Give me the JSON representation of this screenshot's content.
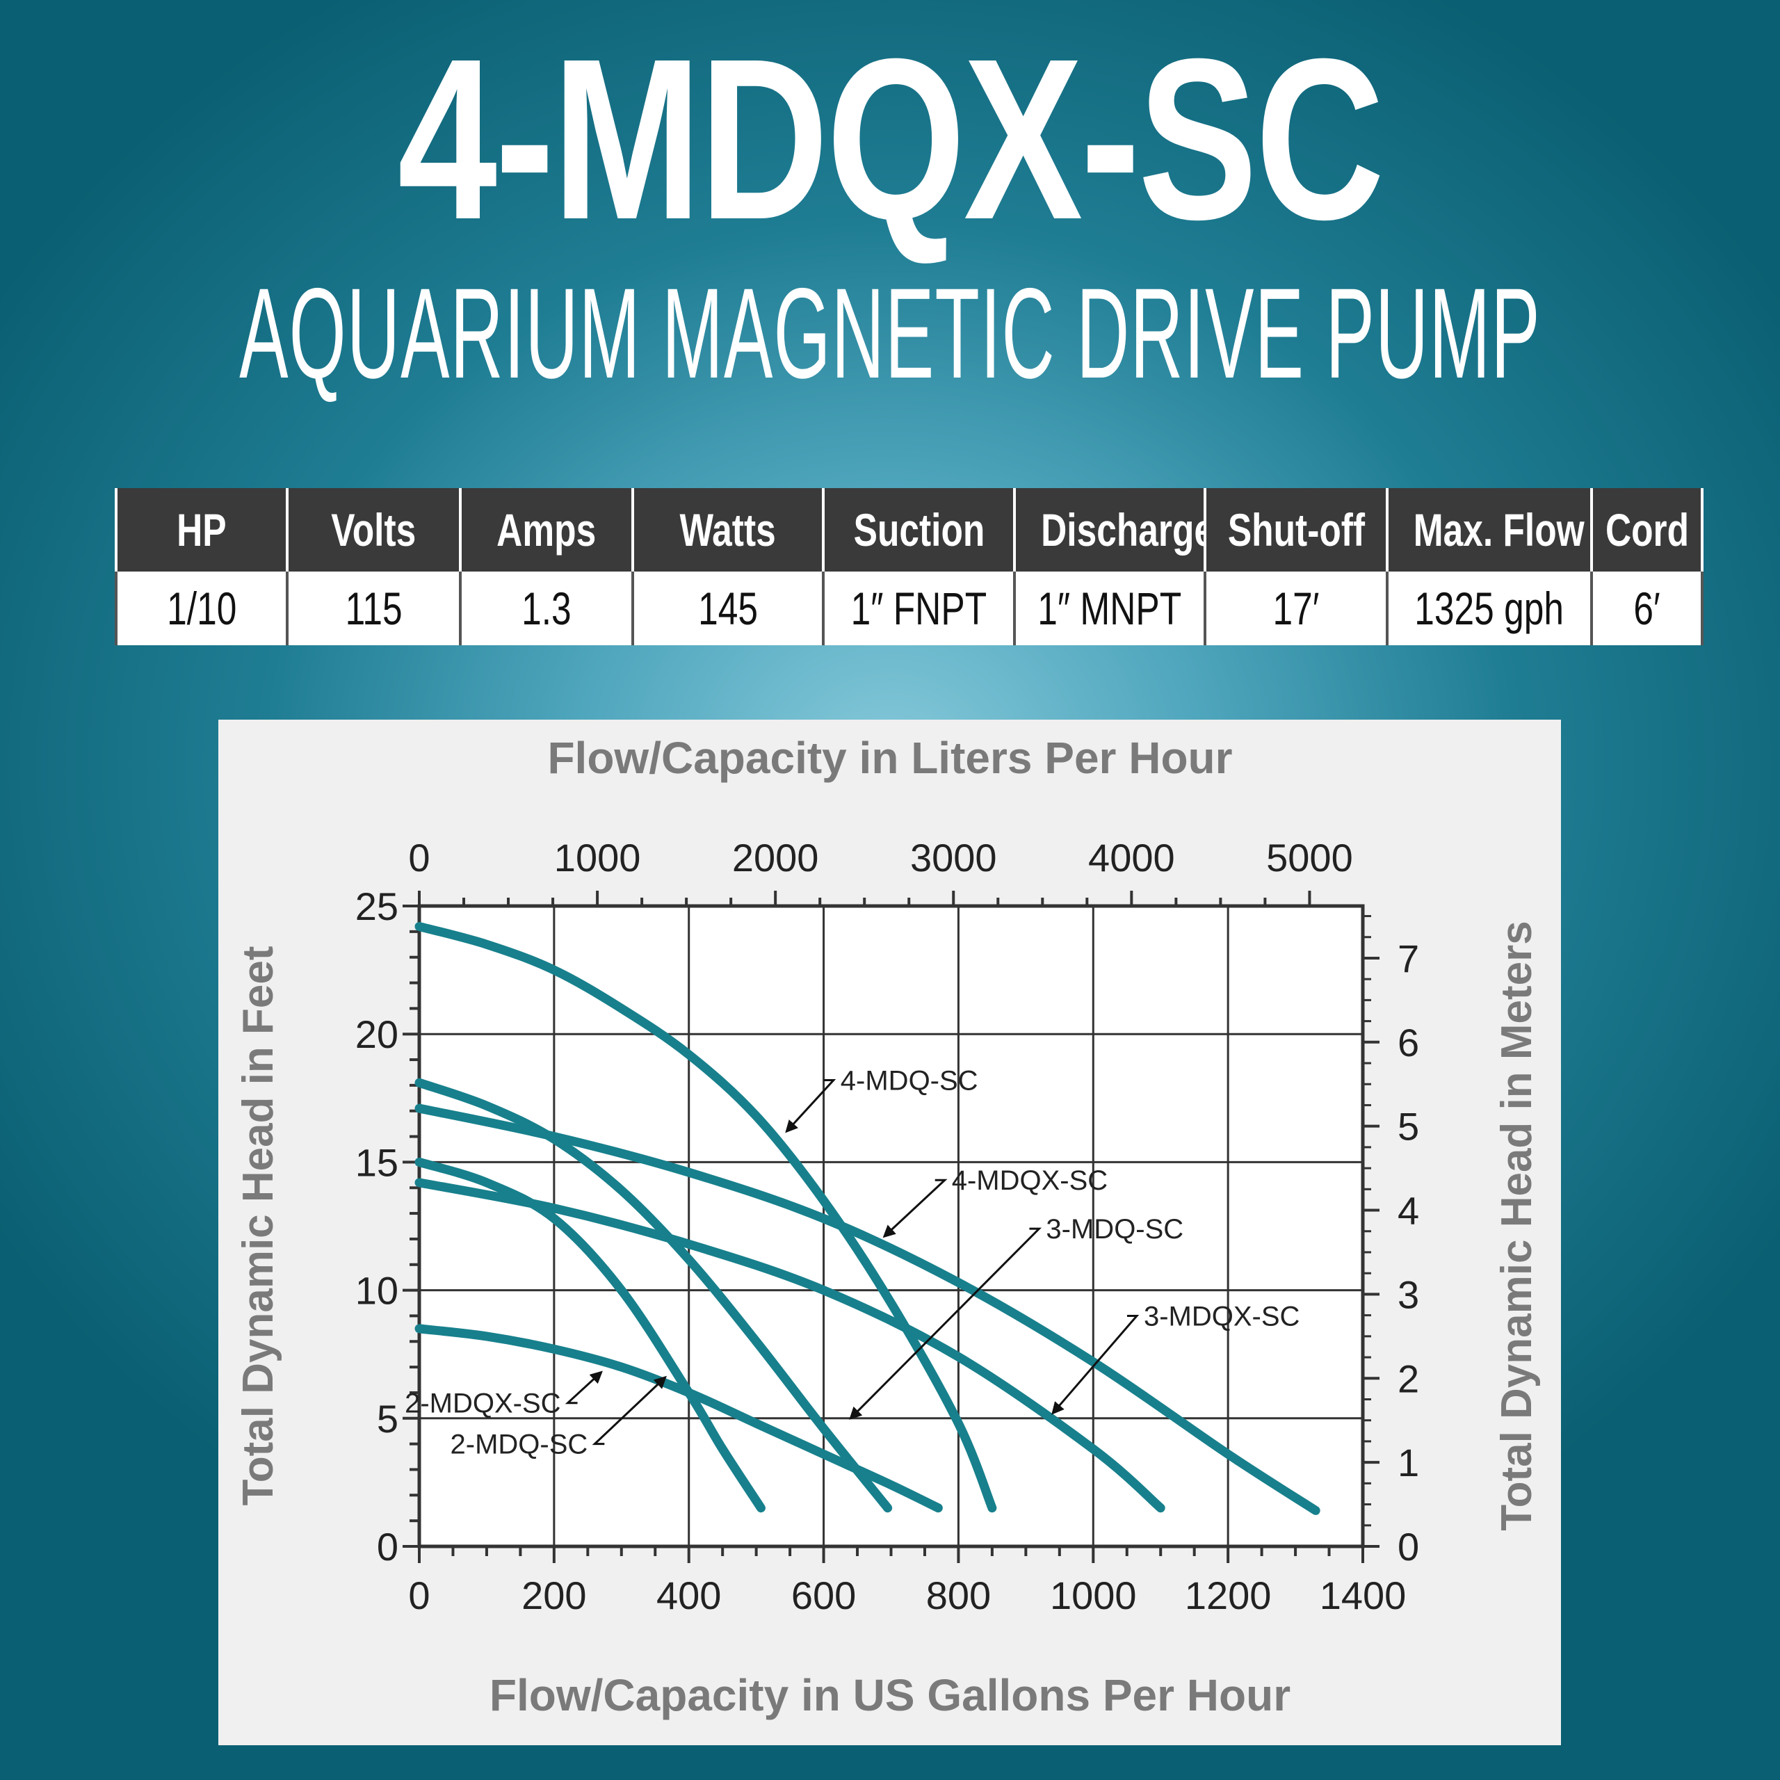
{
  "header": {
    "title": "4-MDQX-SC",
    "subtitle": "AQUARIUM MAGNETIC DRIVE PUMP"
  },
  "specs": {
    "columns": [
      "HP",
      "Volts",
      "Amps",
      "Watts",
      "Suction",
      "Discharge",
      "Shut-off",
      "Max. Flow",
      "Cord"
    ],
    "values": [
      "1/10",
      "115",
      "1.3",
      "145",
      "1″ FNPT",
      "1″ MNPT",
      "17′",
      "1325 gph",
      "6′"
    ]
  },
  "colors": {
    "curve": "#17808c",
    "grid": "#333333",
    "axis_label": "#7a7a7a"
  },
  "chart_data": {
    "type": "line",
    "xlabel": "Flow/Capacity in US Gallons Per Hour",
    "x2label": "Flow/Capacity in Liters Per Hour",
    "ylabel": "Total Dynamic Head in Feet",
    "y2label": "Total Dynamic Head in Meters",
    "xlim": [
      0,
      1400
    ],
    "ylim": [
      0,
      25
    ],
    "xticks": [
      0,
      200,
      400,
      600,
      800,
      1000,
      1200,
      1400
    ],
    "yticks": [
      0,
      5,
      10,
      15,
      20,
      25
    ],
    "x2ticks": [
      0,
      1000,
      2000,
      3000,
      4000,
      5000
    ],
    "y2ticks": [
      0,
      1,
      2,
      3,
      4,
      5,
      6,
      7
    ],
    "grid": true,
    "series": [
      {
        "name": "4-MDQ-SC",
        "points": [
          [
            0,
            24.2
          ],
          [
            100,
            23.5
          ],
          [
            200,
            22.5
          ],
          [
            300,
            21
          ],
          [
            400,
            19.2
          ],
          [
            500,
            16.8
          ],
          [
            600,
            13.5
          ],
          [
            700,
            9.5
          ],
          [
            800,
            4.8
          ],
          [
            850,
            1.5
          ]
        ]
      },
      {
        "name": "3-MDQ-SC",
        "points": [
          [
            0,
            18.1
          ],
          [
            100,
            17.2
          ],
          [
            200,
            15.9
          ],
          [
            300,
            13.9
          ],
          [
            400,
            11.2
          ],
          [
            500,
            8
          ],
          [
            600,
            4.6
          ],
          [
            695,
            1.5
          ]
        ]
      },
      {
        "name": "4-MDQX-SC",
        "points": [
          [
            0,
            17.1
          ],
          [
            200,
            16
          ],
          [
            400,
            14.6
          ],
          [
            600,
            12.8
          ],
          [
            800,
            10.3
          ],
          [
            1000,
            7.2
          ],
          [
            1200,
            3.6
          ],
          [
            1330,
            1.4
          ]
        ]
      },
      {
        "name": "3-MDQX-SC",
        "points": [
          [
            0,
            14.2
          ],
          [
            200,
            13.2
          ],
          [
            400,
            11.8
          ],
          [
            600,
            10
          ],
          [
            800,
            7.4
          ],
          [
            1000,
            3.8
          ],
          [
            1100,
            1.5
          ]
        ]
      },
      {
        "name": "2-MDQ-SC",
        "points": [
          [
            0,
            15
          ],
          [
            100,
            14.2
          ],
          [
            200,
            12.8
          ],
          [
            300,
            10
          ],
          [
            400,
            6
          ],
          [
            450,
            3.8
          ],
          [
            507,
            1.5
          ]
        ]
      },
      {
        "name": "2-MDQX-SC",
        "points": [
          [
            0,
            8.5
          ],
          [
            100,
            8.2
          ],
          [
            200,
            7.7
          ],
          [
            300,
            7
          ],
          [
            400,
            6
          ],
          [
            500,
            4.8
          ],
          [
            600,
            3.6
          ],
          [
            700,
            2.4
          ],
          [
            770,
            1.5
          ]
        ]
      }
    ],
    "annotations": [
      {
        "text": "4-MDQ-SC",
        "target": [
          545,
          16.2
        ],
        "label_at": [
          625,
          18.2
        ]
      },
      {
        "text": "4-MDQX-SC",
        "target": [
          690,
          12.1
        ],
        "label_at": [
          790,
          14.3
        ]
      },
      {
        "text": "3-MDQ-SC",
        "target": [
          640,
          5
        ],
        "label_at": [
          930,
          12.4
        ]
      },
      {
        "text": "3-MDQX-SC",
        "target": [
          940,
          5.2
        ],
        "label_at": [
          1075,
          9
        ]
      },
      {
        "text": "2-MDQX-SC",
        "target": [
          270,
          6.8
        ],
        "label_at": [
          210,
          5.6
        ]
      },
      {
        "text": "2-MDQ-SC",
        "target": [
          365,
          6.6
        ],
        "label_at": [
          250,
          4
        ]
      }
    ]
  }
}
